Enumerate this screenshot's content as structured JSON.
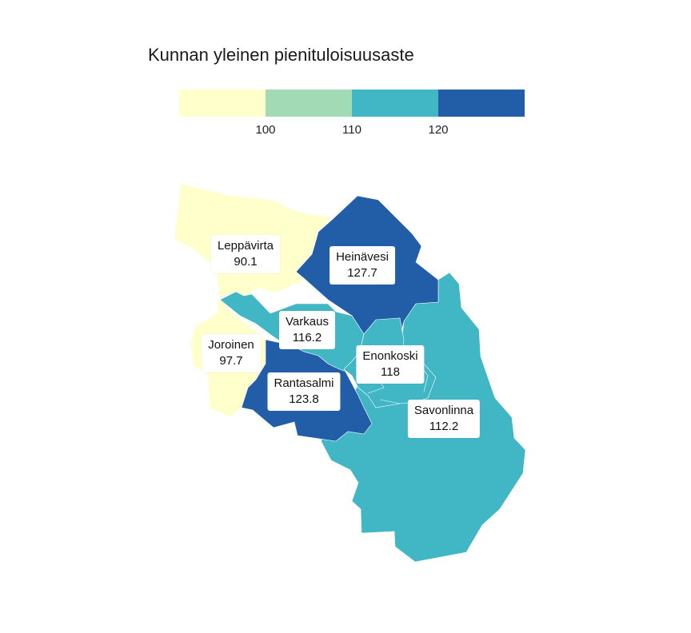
{
  "legend": {
    "title": "Kunnan yleinen pienituloisuusaste",
    "bins": [
      {
        "color": "#ffffcc"
      },
      {
        "color": "#a1dab4"
      },
      {
        "color": "#41b6c4"
      },
      {
        "color": "#225ea8"
      }
    ],
    "breaks": [
      "100",
      "110",
      "120"
    ]
  },
  "regions": [
    {
      "id": "leppavirta",
      "name": "Leppävirta",
      "value": "90.1",
      "color": "#ffffcc"
    },
    {
      "id": "joroinen",
      "name": "Joroinen",
      "value": "97.7",
      "color": "#ffffcc"
    },
    {
      "id": "heinavesi",
      "name": "Heinävesi",
      "value": "127.7",
      "color": "#225ea8"
    },
    {
      "id": "varkaus",
      "name": "Varkaus",
      "value": "116.2",
      "color": "#41b6c4"
    },
    {
      "id": "rantasalmi",
      "name": "Rantasalmi",
      "value": "123.8",
      "color": "#225ea8"
    },
    {
      "id": "enonkoski",
      "name": "Enonkoski",
      "value": "118",
      "color": "#41b6c4"
    },
    {
      "id": "savonlinna",
      "name": "Savonlinna",
      "value": "112.2",
      "color": "#41b6c4"
    }
  ]
}
